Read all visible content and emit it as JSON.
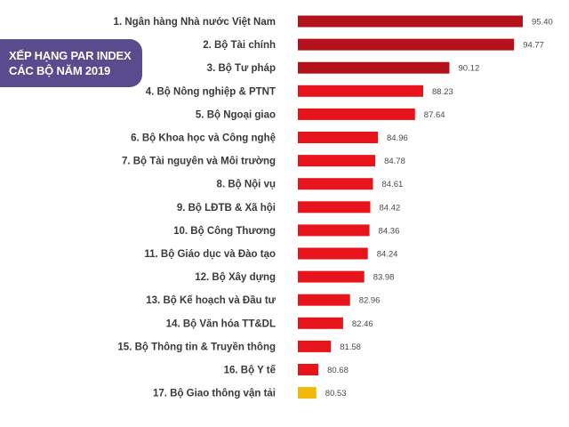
{
  "badge": {
    "line1": "XẾP HẠNG PAR INDEX",
    "line2": "CÁC BỘ NĂM 2019"
  },
  "colors": {
    "badge_bg": "#5a4a8e",
    "top_bars": "#b3121b",
    "other_bars": "#e8141c",
    "last_bar": "#f0b90b"
  },
  "chart_data": {
    "type": "bar",
    "orientation": "horizontal",
    "categories": [
      "1. Ngân hàng Nhà nước Việt Nam",
      "2. Bộ Tài chính",
      "3. Bộ Tư pháp",
      "4. Bộ Nông nghiệp & PTNT",
      "5. Bộ Ngoại giao",
      "6. Bộ Khoa học và Công nghệ",
      "7. Bộ Tài nguyên và Môi trường",
      "8. Bộ Nội vụ",
      "9. Bộ LĐTB & Xã hội",
      "10. Bộ Công Thương",
      "11. Bộ Giáo dục và Đào tạo",
      "12. Bộ Xây dựng",
      "13. Bộ Kế hoạch và Đầu tư",
      "14. Bộ Văn hóa TT&DL",
      "15. Bộ Thông tin & Truyền thông",
      "16. Bộ Y tế",
      "17. Bộ Giao thông vận tải"
    ],
    "values": [
      95.4,
      94.77,
      90.12,
      88.23,
      87.64,
      84.96,
      84.78,
      84.61,
      84.42,
      84.36,
      84.24,
      83.98,
      82.96,
      82.46,
      81.58,
      80.68,
      80.53
    ],
    "value_labels": [
      "95.40",
      "94.77",
      "90.12",
      "88.23",
      "87.64",
      "84.96",
      "84.78",
      "84.61",
      "84.42",
      "84.36",
      "84.24",
      "83.98",
      "82.96",
      "82.46",
      "81.58",
      "80.68",
      "80.53"
    ],
    "title": "",
    "xlabel": "",
    "ylabel": "",
    "grid": false,
    "legend": false
  }
}
